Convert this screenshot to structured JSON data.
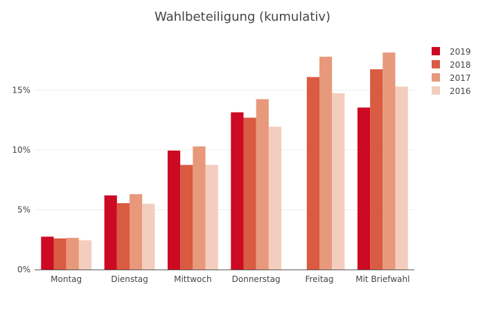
{
  "chart_data": {
    "type": "bar",
    "title": "Wahlbeteiligung (kumulativ)",
    "categories": [
      "Montag",
      "Dienstag",
      "Mittwoch",
      "Donnerstag",
      "Freitag",
      "Mit Briefwahl"
    ],
    "series": [
      {
        "name": "2019",
        "color": "#cc0a23",
        "values": [
          2.75,
          6.2,
          9.95,
          13.15,
          null,
          13.55
        ]
      },
      {
        "name": "2018",
        "color": "#d95b42",
        "values": [
          2.6,
          5.55,
          8.75,
          12.7,
          16.1,
          16.75
        ]
      },
      {
        "name": "2017",
        "color": "#e8987b",
        "values": [
          2.65,
          6.3,
          10.3,
          14.25,
          17.8,
          18.15
        ]
      },
      {
        "name": "2016",
        "color": "#f3cdbd",
        "values": [
          2.45,
          5.5,
          8.75,
          11.95,
          14.75,
          15.3
        ]
      }
    ],
    "yticks": [
      "0%",
      "5%",
      "10%",
      "15%"
    ],
    "ytick_values": [
      0,
      5,
      10,
      15
    ],
    "ylim": [
      0,
      20
    ],
    "legend_position": "right",
    "grid": true
  }
}
